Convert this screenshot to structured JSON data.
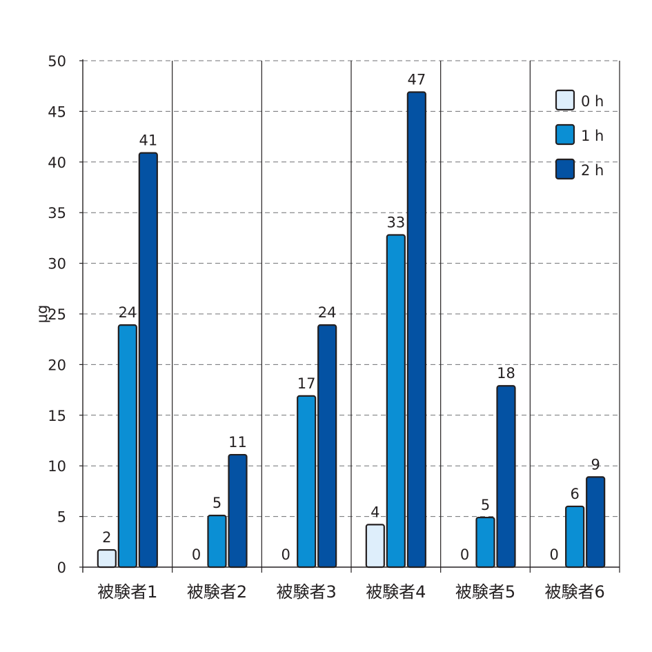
{
  "chart_data": {
    "type": "bar",
    "title": "",
    "xlabel": "",
    "ylabel": "μg",
    "ylim": [
      0,
      50
    ],
    "yticks": [
      0,
      5,
      10,
      15,
      20,
      25,
      30,
      35,
      40,
      45,
      50
    ],
    "grid": true,
    "legend_position": "top-right",
    "categories": [
      "被験者1",
      "被験者2",
      "被験者3",
      "被験者4",
      "被験者5",
      "被験者6"
    ],
    "series": [
      {
        "name": "0 h",
        "color": "#deeefb",
        "values": [
          1.7,
          0,
          0,
          4.2,
          0,
          0
        ],
        "labels": [
          "2",
          "0",
          "0",
          "4",
          "0",
          "0"
        ]
      },
      {
        "name": "1 h",
        "color": "#0b8fd4",
        "values": [
          23.9,
          5.1,
          16.9,
          32.8,
          4.9,
          6.0
        ],
        "labels": [
          "24",
          "5",
          "17",
          "33",
          "5",
          "6"
        ]
      },
      {
        "name": "2 h",
        "color": "#0452a3",
        "values": [
          40.9,
          11.1,
          23.9,
          46.9,
          17.9,
          8.9
        ],
        "labels": [
          "41",
          "11",
          "24",
          "47",
          "18",
          "9"
        ]
      }
    ]
  }
}
